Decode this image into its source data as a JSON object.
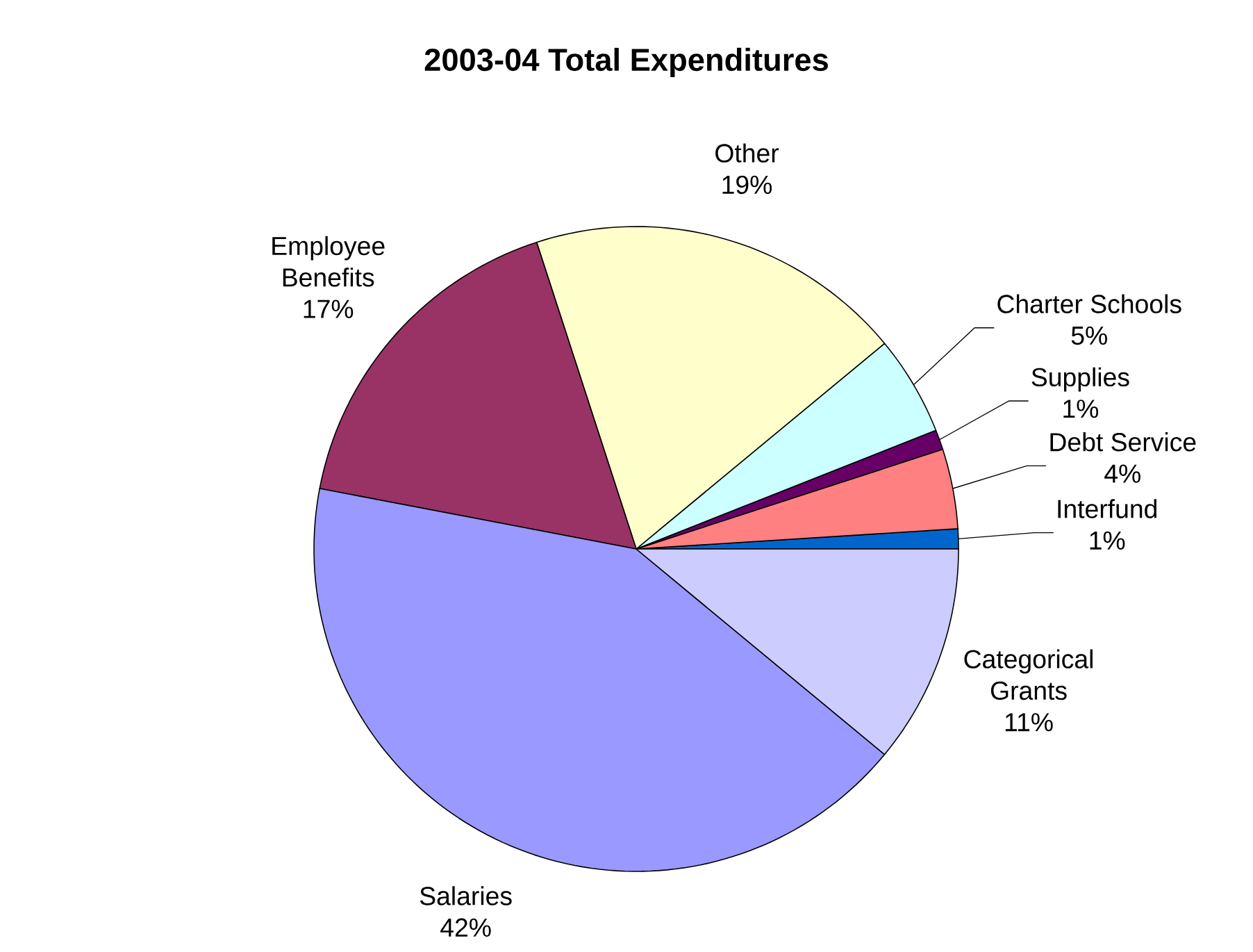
{
  "chart_data": {
    "type": "pie",
    "title": "2003-04 Total Expenditures",
    "categories": [
      "Interfund",
      "Debt Service",
      "Supplies",
      "Charter Schools",
      "Other",
      "Employee Benefits",
      "Salaries",
      "Categorical Grants"
    ],
    "values": [
      1,
      4,
      1,
      5,
      19,
      17,
      42,
      11
    ],
    "value_labels": [
      "1%",
      "4%",
      "1%",
      "5%",
      "19%",
      "17%",
      "42%",
      "11%"
    ],
    "colors": [
      "#0066cc",
      "#ff8080",
      "#660066",
      "#ccffff",
      "#ffffcc",
      "#993366",
      "#9999ff",
      "#ccccff"
    ]
  }
}
